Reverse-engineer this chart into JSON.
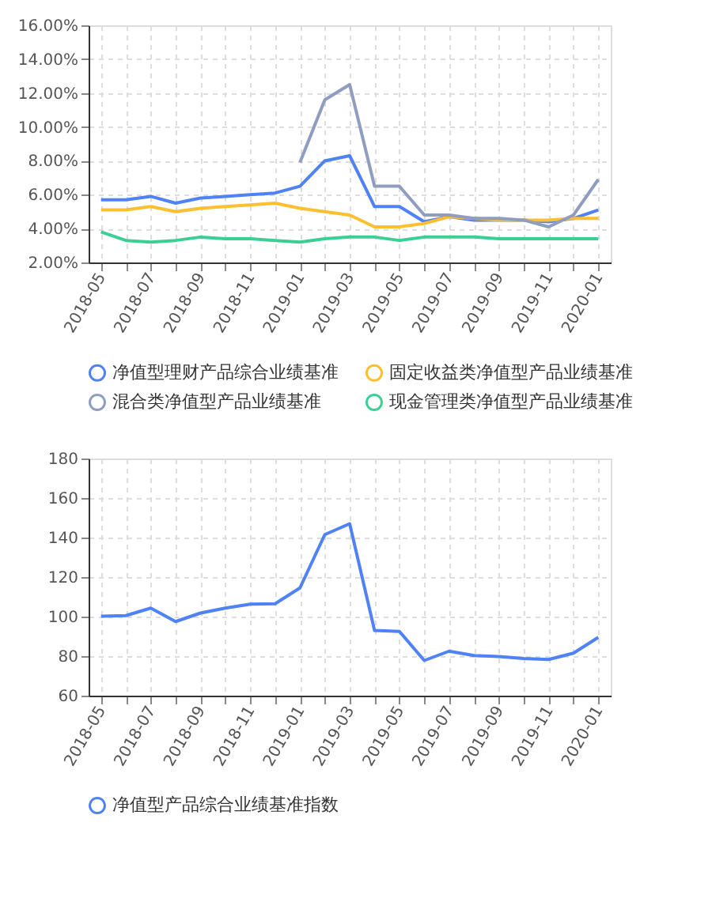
{
  "chart_data": [
    {
      "type": "line",
      "categories": [
        "2018-05",
        null,
        "2018-07",
        null,
        "2018-09",
        null,
        "2018-11",
        null,
        "2019-01",
        null,
        "2019-03",
        null,
        "2019-05",
        null,
        "2019-07",
        null,
        "2019-09",
        null,
        "2019-11",
        null,
        "2020-01"
      ],
      "series": [
        {
          "name": "净值型理财产品综合业绩基准",
          "color": "#4f81f7",
          "values": [
            5.7,
            5.7,
            5.9,
            5.5,
            5.8,
            5.9,
            6.0,
            6.1,
            6.5,
            8.0,
            8.3,
            5.3,
            5.3,
            4.4,
            4.7,
            4.5,
            4.5,
            4.5,
            4.4,
            4.6,
            5.1
          ]
        },
        {
          "name": "固定收益类净值型产品业绩基准",
          "color": "#fbbf2f",
          "values": [
            5.1,
            5.1,
            5.3,
            5.0,
            5.2,
            5.3,
            5.4,
            5.5,
            5.2,
            5.0,
            4.8,
            4.1,
            4.1,
            4.3,
            4.7,
            4.6,
            4.5,
            4.5,
            4.5,
            4.6,
            4.6
          ]
        },
        {
          "name": "混合类净值型产品业绩基准",
          "color": "#8f9dc0",
          "values": [
            null,
            null,
            null,
            null,
            null,
            null,
            null,
            null,
            7.9,
            11.6,
            12.5,
            6.5,
            6.5,
            4.8,
            4.8,
            4.6,
            4.6,
            4.5,
            4.1,
            4.8,
            6.9
          ]
        },
        {
          "name": "现金管理类净值型产品业绩基准",
          "color": "#3ccf94",
          "values": [
            3.8,
            3.3,
            3.2,
            3.3,
            3.5,
            3.4,
            3.4,
            3.3,
            3.2,
            3.4,
            3.5,
            3.5,
            3.3,
            3.5,
            3.5,
            3.5,
            3.4,
            3.4,
            3.4,
            3.4,
            3.4
          ]
        }
      ],
      "ylim": [
        2,
        16
      ],
      "yticks": [
        {
          "value": 2,
          "label": "2.00%"
        },
        {
          "value": 4,
          "label": "4.00%"
        },
        {
          "value": 6,
          "label": "6.00%"
        },
        {
          "value": 8,
          "label": "8.00%"
        },
        {
          "value": 10,
          "label": "10.00%"
        },
        {
          "value": 12,
          "label": "12.00%"
        },
        {
          "value": 14,
          "label": "14.00%"
        },
        {
          "value": 16,
          "label": "16.00%"
        }
      ],
      "grid": true,
      "legend": "bottom",
      "marker": "none",
      "line_style": "solid"
    },
    {
      "type": "line",
      "categories": [
        "2018-05",
        null,
        "2018-07",
        null,
        "2018-09",
        null,
        "2018-11",
        null,
        "2019-01",
        null,
        "2019-03",
        null,
        "2019-05",
        null,
        "2019-07",
        null,
        "2019-09",
        null,
        "2019-11",
        null,
        "2020-01"
      ],
      "series": [
        {
          "name": "净值型产品综合业绩基准指数",
          "color": "#4f81f7",
          "values": [
            100.2,
            100.5,
            104.3,
            97.5,
            101.8,
            104.3,
            106.3,
            106.5,
            114.5,
            141.5,
            147,
            93,
            92.5,
            77.8,
            82.5,
            80.3,
            79.8,
            78.8,
            78.3,
            81.5,
            89.5
          ]
        }
      ],
      "ylim": [
        60,
        180
      ],
      "yticks": [
        60,
        80,
        100,
        120,
        140,
        160,
        180
      ],
      "grid": true,
      "legend": "bottom",
      "marker": "none",
      "line_style": "solid"
    }
  ]
}
